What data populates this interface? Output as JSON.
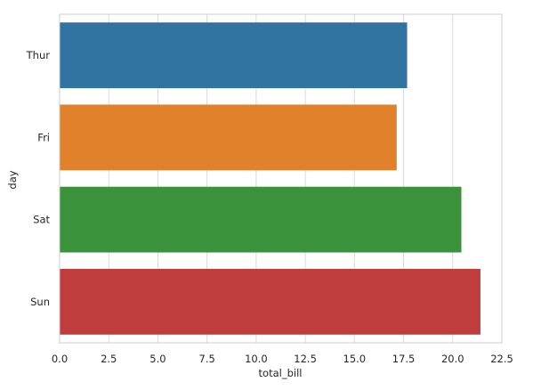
{
  "chart_data": {
    "type": "bar",
    "orientation": "horizontal",
    "categories": [
      "Thur",
      "Fri",
      "Sat",
      "Sun"
    ],
    "values": [
      17.68,
      17.15,
      20.44,
      21.41
    ],
    "colors": [
      "#3274a1",
      "#e1812c",
      "#3a923a",
      "#c03d3e"
    ],
    "xlabel": "total_bill",
    "ylabel": "day",
    "xlim": [
      0,
      22.5
    ],
    "xticks": [
      0.0,
      2.5,
      5.0,
      7.5,
      10.0,
      12.5,
      15.0,
      17.5,
      20.0,
      22.5
    ],
    "xtick_labels": [
      "0.0",
      "2.5",
      "5.0",
      "7.5",
      "10.0",
      "12.5",
      "15.0",
      "17.5",
      "20.0",
      "22.5"
    ],
    "grid": true,
    "grid_color": "#d9d9d9",
    "spine_color": "#cccccc"
  }
}
